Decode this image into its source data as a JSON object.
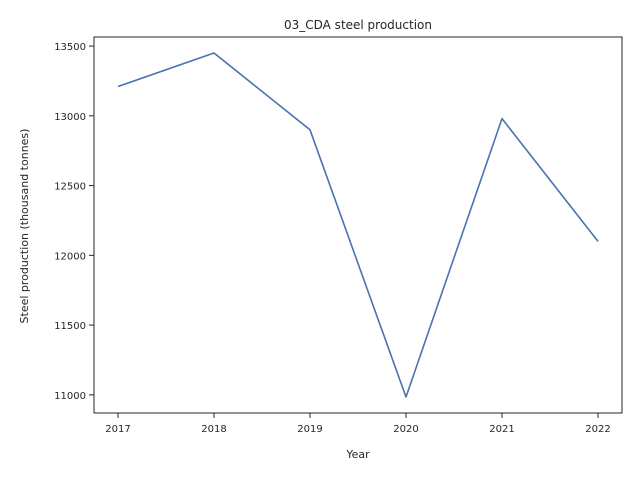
{
  "chart_data": {
    "type": "line",
    "title": "03_CDA steel production",
    "xlabel": "Year",
    "ylabel": "Steel production (thousand tonnes)",
    "x": [
      2017,
      2018,
      2019,
      2020,
      2021,
      2022
    ],
    "series": [
      {
        "values": [
          13210,
          13450,
          12900,
          10985,
          12980,
          12100
        ]
      }
    ],
    "xticks": [
      "2017",
      "2018",
      "2019",
      "2020",
      "2021",
      "2022"
    ],
    "yticks": [
      "11000",
      "11500",
      "12000",
      "12500",
      "13000",
      "13500"
    ],
    "ylim": [
      10870,
      13565
    ],
    "xlim": [
      2016.75,
      2022.25
    ],
    "grid": false,
    "colors": {
      "line": "#4c72b0",
      "axis": "#262626"
    }
  }
}
